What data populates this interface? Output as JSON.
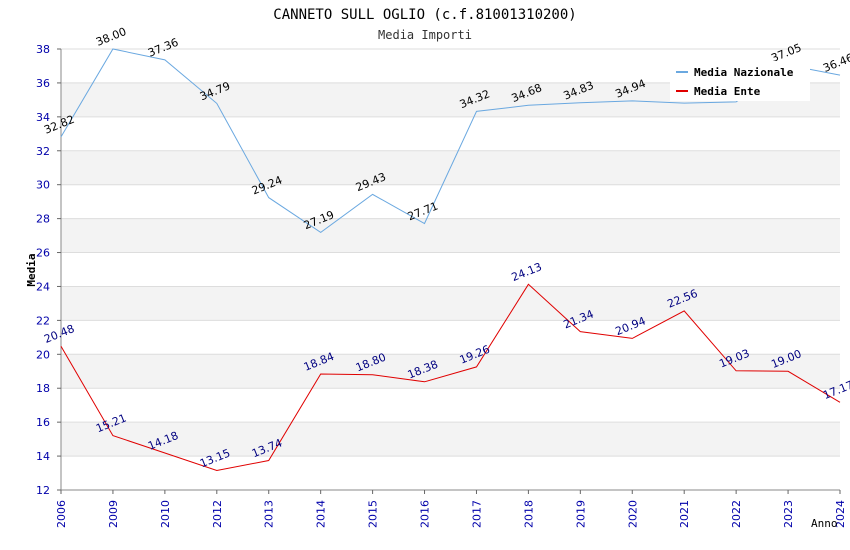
{
  "chart_data": {
    "type": "line",
    "title": "CANNETO SULL OGLIO (c.f.81001310200)",
    "subtitle": "Media Importi",
    "xlabel": "Anno",
    "ylabel": "Media",
    "categories": [
      "2006",
      "2009",
      "2010",
      "2012",
      "2013",
      "2014",
      "2015",
      "2016",
      "2017",
      "2018",
      "2019",
      "2020",
      "2021",
      "2022",
      "2023",
      "2024"
    ],
    "ylim": [
      12,
      38
    ],
    "yticks": [
      "12",
      "14",
      "16",
      "18",
      "20",
      "22",
      "24",
      "26",
      "28",
      "30",
      "32",
      "34",
      "36",
      "38"
    ],
    "legend_position": "top-right",
    "series": [
      {
        "name": "Media Nazionale",
        "color": "#6aa8e0",
        "label_color": "#000000",
        "values": [
          32.82,
          38.0,
          37.36,
          34.79,
          29.24,
          27.19,
          29.43,
          27.71,
          34.32,
          34.68,
          34.83,
          34.94,
          34.81,
          34.88,
          37.05,
          36.46
        ],
        "labels": [
          "32.82",
          "38.00",
          "37.36",
          "34.79",
          "29.24",
          "27.19",
          "29.43",
          "27.71",
          "34.32",
          "34.68",
          "34.83",
          "34.94",
          "",
          "",
          "37.05",
          "36.46"
        ]
      },
      {
        "name": "Media Ente",
        "color": "#e00000",
        "label_color": "#000080",
        "values": [
          20.48,
          15.21,
          14.18,
          13.15,
          13.74,
          18.84,
          18.8,
          18.38,
          19.26,
          24.13,
          21.34,
          20.94,
          22.56,
          19.03,
          19.0,
          17.17
        ],
        "labels": [
          "20.48",
          "15.21",
          "14.18",
          "13.15",
          "13.74",
          "18.84",
          "18.80",
          "18.38",
          "19.26",
          "24.13",
          "21.34",
          "20.94",
          "22.56",
          "19.03",
          "19.00",
          "17.17"
        ]
      }
    ]
  }
}
